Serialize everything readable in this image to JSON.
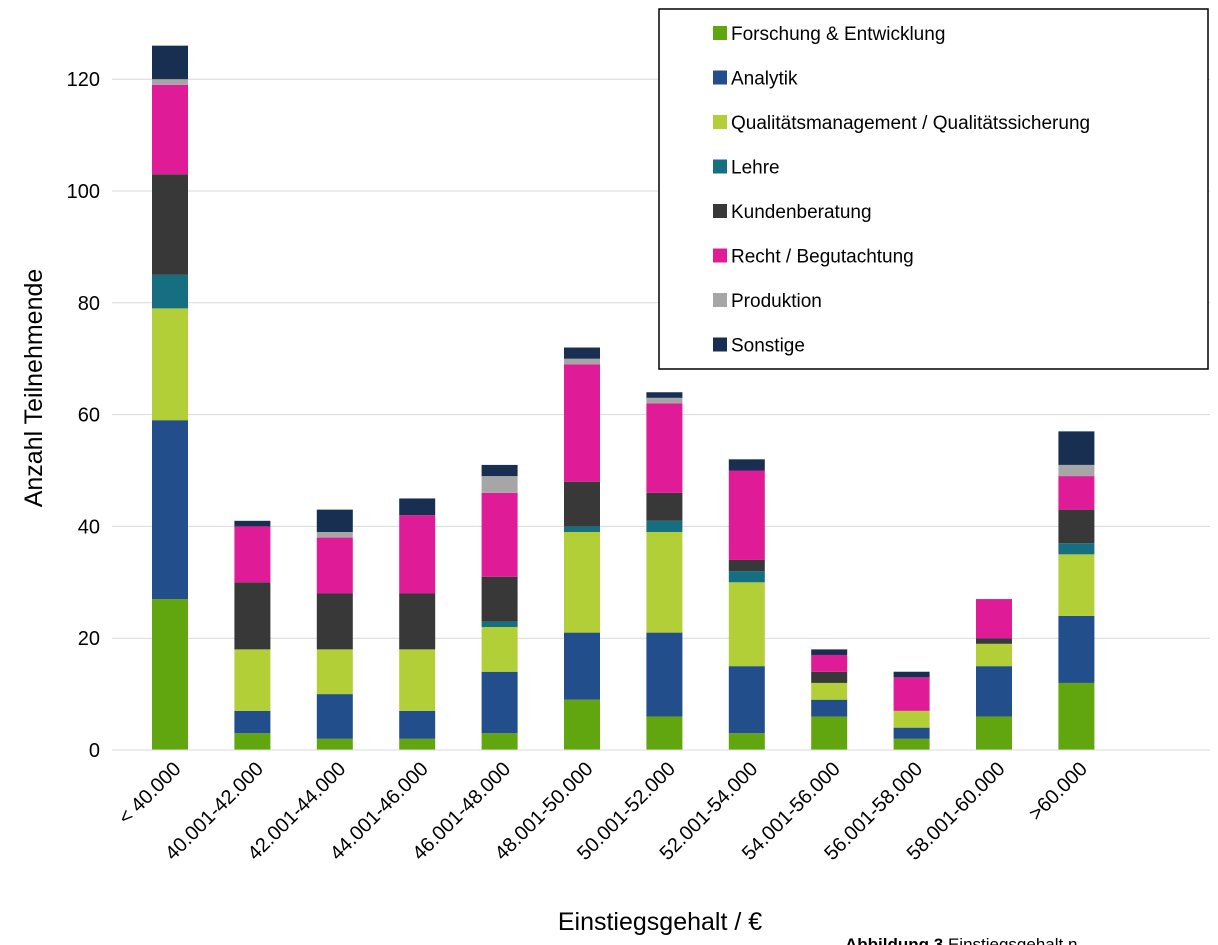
{
  "chart_data": {
    "type": "bar",
    "stacked": true,
    "xlabel": "Einstiegsgehalt / €",
    "ylabel": "Anzahl Teilnehmende",
    "ylim": [
      0,
      126
    ],
    "yticks": [
      0,
      20,
      40,
      60,
      80,
      100,
      120
    ],
    "grid": true,
    "legend_position": "top-right",
    "categories": [
      "< 40.000",
      "40.001-42.000",
      "42.001-44.000",
      "44.001-46.000",
      "46.001-48.000",
      "48.001-50.000",
      "50.001-52.000",
      "52.001-54.000",
      "54.001-56.000",
      "56.001-58.000",
      "58.001-60.000",
      ">60.000"
    ],
    "series": [
      {
        "name": "Forschung & Entwicklung",
        "color": "#62A60F",
        "values": [
          27,
          3,
          2,
          2,
          3,
          9,
          6,
          3,
          6,
          2,
          6,
          12
        ]
      },
      {
        "name": "Analytik",
        "color": "#234E8C",
        "values": [
          32,
          4,
          8,
          5,
          11,
          12,
          15,
          12,
          3,
          2,
          9,
          12
        ]
      },
      {
        "name": "Qualitätsmanagement / Qualitätssicherung",
        "color": "#B2CF38",
        "values": [
          20,
          11,
          8,
          11,
          8,
          18,
          18,
          15,
          3,
          3,
          4,
          11
        ]
      },
      {
        "name": "Lehre",
        "color": "#166F80",
        "values": [
          6,
          0,
          0,
          0,
          1,
          1,
          2,
          2,
          0,
          0,
          0,
          2
        ]
      },
      {
        "name": "Kundenberatung",
        "color": "#383838",
        "values": [
          18,
          12,
          10,
          10,
          8,
          8,
          5,
          2,
          2,
          0,
          1,
          6
        ]
      },
      {
        "name": "Recht / Begutachtung",
        "color": "#E01B97",
        "values": [
          16,
          10,
          10,
          14,
          15,
          21,
          16,
          16,
          3,
          6,
          7,
          6
        ]
      },
      {
        "name": "Produktion",
        "color": "#A6A6A6",
        "values": [
          1,
          0,
          1,
          0,
          3,
          1,
          1,
          0,
          0,
          0,
          0,
          2
        ]
      },
      {
        "name": "Sonstige",
        "color": "#182F52",
        "values": [
          6,
          1,
          4,
          3,
          2,
          2,
          1,
          2,
          1,
          1,
          0,
          6
        ]
      }
    ]
  },
  "footer": {
    "bold": "Abbildung 3",
    "text": "Einstiegsgehalt n"
  }
}
